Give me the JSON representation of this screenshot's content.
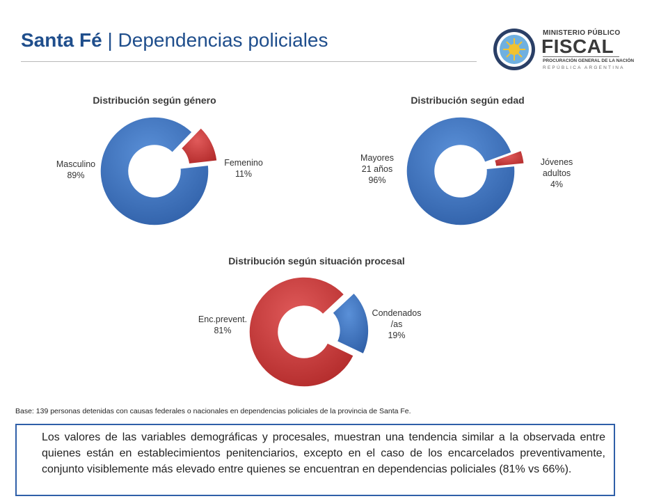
{
  "header": {
    "title_bold": "Santa Fé",
    "title_rest": " | Dependencias policiales"
  },
  "logo": {
    "line1": "MINISTERIO PÚBLICO",
    "line2": "FISCAL",
    "line3": "PROCURACIÓN GENERAL DE LA NACIÓN",
    "line4": "REPÚBLICA ARGENTINA"
  },
  "colors": {
    "blue": "#3b73c4",
    "red": "#cc3333",
    "title": "#1f4e8c"
  },
  "chart_data": [
    {
      "type": "pie",
      "title": "Distribución según género",
      "categories": [
        "Masculino",
        "Femenino"
      ],
      "values": [
        89,
        11
      ],
      "labels": [
        "Masculino\n89%",
        "Femenino\n11%"
      ]
    },
    {
      "type": "pie",
      "title": "Distribución según edad",
      "categories": [
        "Mayores 21 años",
        "Jóvenes adultos"
      ],
      "values": [
        96,
        4
      ],
      "labels": [
        "Mayores\n21 años\n96%",
        "Jóvenes\nadultos\n4%"
      ]
    },
    {
      "type": "pie",
      "title": "Distribución según situación procesal",
      "categories": [
        "Enc.prevent.",
        "Condenados/as"
      ],
      "values": [
        81,
        19
      ],
      "labels": [
        "Enc.prevent.\n81%",
        "Condenados\n/as\n19%"
      ]
    }
  ],
  "footer": {
    "base_note": "Base: 139 personas detenidas con causas federales o nacionales en dependencias policiales de la provincia de Santa Fe.",
    "summary": "Los valores de las variables demográficas y procesales, muestran una tendencia similar a la observada entre quienes están en establecimientos penitenciarios, excepto en el caso de los encarcelados preventivamente, conjunto visiblemente más elevado entre quienes se encuentran en dependencias policiales (81% vs 66%)."
  }
}
